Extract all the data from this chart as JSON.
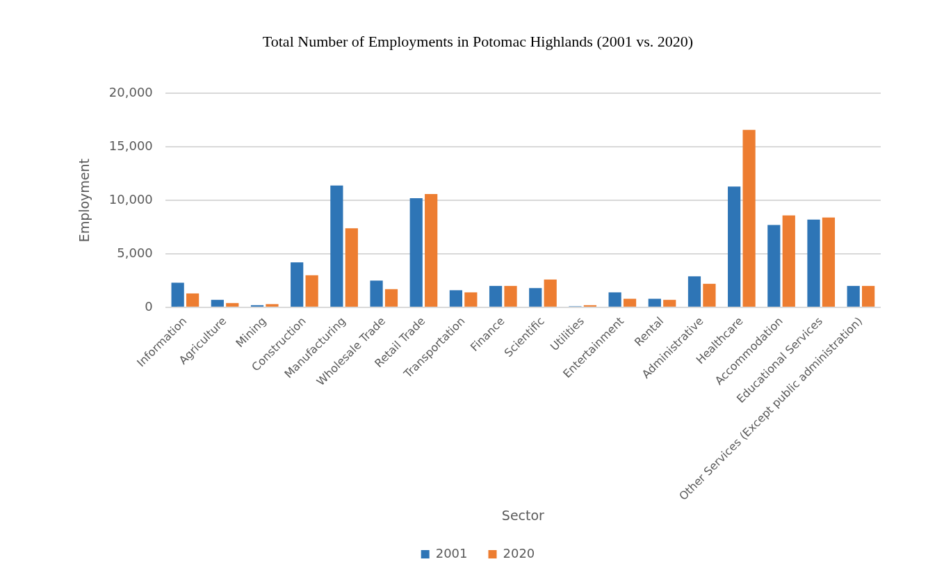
{
  "chart_data": {
    "type": "bar",
    "title": "Total Number of Employments in Potomac Highlands (2001 vs. 2020)",
    "xlabel": "Sector",
    "ylabel": "Employment",
    "categories": [
      "Information",
      "Agriculture",
      "Mining",
      "Construction",
      "Manufacturing",
      "Wholesale Trade",
      "Retail Trade",
      "Transportation",
      "Finance",
      "Scientific",
      "Utilities",
      "Entertainment",
      "Rental",
      "Administrative",
      "Healthcare",
      "Accommodation",
      "Educational Services",
      "Other Services (Except public administration)"
    ],
    "series": [
      {
        "name": "2001",
        "color": "#2e75b6",
        "values": [
          2300,
          700,
          200,
          4200,
          11400,
          2500,
          10200,
          1600,
          2000,
          1800,
          100,
          1400,
          800,
          2900,
          11300,
          7700,
          8200,
          2000
        ]
      },
      {
        "name": "2020",
        "color": "#ed7d31",
        "values": [
          1300,
          400,
          300,
          3000,
          7400,
          1700,
          10600,
          1400,
          2000,
          2600,
          200,
          800,
          700,
          2200,
          16600,
          8600,
          8400,
          2000
        ]
      }
    ],
    "ylim": [
      0,
      20000
    ],
    "yticks": [
      0,
      {
        "value": 5000,
        "label": "5,000"
      },
      {
        "value": 10000,
        "label": "10,000"
      },
      {
        "value": 15000,
        "label": "15,000"
      },
      {
        "value": 20000,
        "label": "20,000"
      }
    ],
    "grid": "y",
    "legend": "bottom"
  }
}
